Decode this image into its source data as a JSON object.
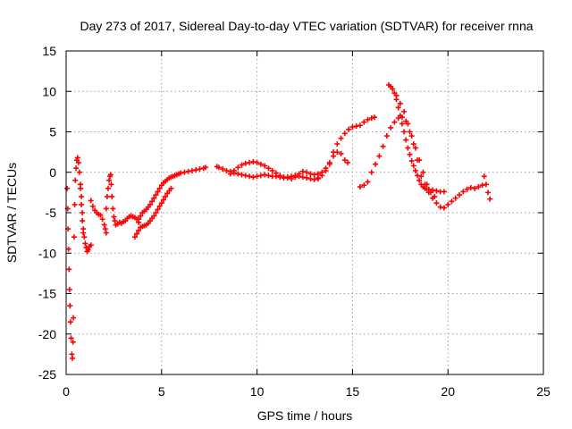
{
  "chart_data": {
    "type": "scatter",
    "title": "Day 273 of 2017, Sidereal Day-to-day VTEC variation (SDTVAR) for receiver rnna",
    "xlabel": "GPS time / hours",
    "ylabel": "SDTVAR / TECUs",
    "xlim": [
      0,
      25
    ],
    "ylim": [
      -25,
      15
    ],
    "x_ticks": [
      0,
      5,
      10,
      15,
      20,
      25
    ],
    "y_ticks": [
      -25,
      -20,
      -15,
      -10,
      -5,
      0,
      5,
      10,
      15
    ],
    "grid": true,
    "marker": "+",
    "series": [
      {
        "color": "#ff0000",
        "points": [
          [
            0.05,
            -2.0
          ],
          [
            0.08,
            -4.5
          ],
          [
            0.1,
            -7.0
          ],
          [
            0.12,
            -9.5
          ],
          [
            0.15,
            -12.0
          ],
          [
            0.18,
            -14.5
          ],
          [
            0.2,
            -16.5
          ],
          [
            0.23,
            -18.5
          ],
          [
            0.26,
            -20.5
          ],
          [
            0.3,
            -22.5
          ],
          [
            0.33,
            -23.0
          ],
          [
            0.36,
            -21.0
          ],
          [
            0.38,
            -18.0
          ],
          [
            0.42,
            -8.0
          ],
          [
            0.45,
            -4.0
          ],
          [
            0.48,
            -1.0
          ],
          [
            0.52,
            0.5
          ],
          [
            0.56,
            1.5
          ],
          [
            0.6,
            1.8
          ],
          [
            0.65,
            1.2
          ],
          [
            0.7,
            0.0
          ],
          [
            0.75,
            -1.5
          ],
          [
            0.8,
            -3.0
          ],
          [
            0.85,
            -5.0
          ],
          [
            0.9,
            -7.0
          ],
          [
            0.95,
            -8.0
          ],
          [
            1.0,
            -8.8
          ],
          [
            1.05,
            -9.3
          ],
          [
            1.1,
            -9.8
          ],
          [
            1.15,
            -9.6
          ],
          [
            1.22,
            -9.2
          ],
          [
            1.3,
            -9.0
          ],
          [
            0.75,
            -2.0
          ],
          [
            0.8,
            -4.0
          ],
          [
            0.85,
            -6.0
          ],
          [
            0.9,
            -7.5
          ],
          [
            1.3,
            -3.5
          ],
          [
            1.4,
            -4.2
          ],
          [
            1.5,
            -4.7
          ],
          [
            1.6,
            -5.0
          ],
          [
            1.7,
            -5.2
          ],
          [
            1.8,
            -5.3
          ],
          [
            1.9,
            -5.8
          ],
          [
            2.0,
            -6.5
          ],
          [
            2.05,
            -7.0
          ],
          [
            2.1,
            -7.5
          ],
          [
            2.1,
            -4.5
          ],
          [
            2.15,
            -3.0
          ],
          [
            2.2,
            -2.0
          ],
          [
            2.25,
            -1.0
          ],
          [
            2.3,
            -0.5
          ],
          [
            2.33,
            -0.3
          ],
          [
            2.36,
            -1.5
          ],
          [
            2.4,
            -3.0
          ],
          [
            2.45,
            -4.5
          ],
          [
            2.5,
            -5.5
          ],
          [
            2.55,
            -6.0
          ],
          [
            2.6,
            -6.5
          ],
          [
            2.7,
            -6.4
          ],
          [
            2.8,
            -6.2
          ],
          [
            2.9,
            -6.3
          ],
          [
            3.0,
            -6.1
          ],
          [
            3.1,
            -6.0
          ],
          [
            3.2,
            -5.7
          ],
          [
            3.3,
            -5.5
          ],
          [
            3.4,
            -5.4
          ],
          [
            3.5,
            -5.5
          ],
          [
            3.6,
            -5.6
          ],
          [
            3.7,
            -5.8
          ],
          [
            3.8,
            -6.2
          ],
          [
            3.6,
            -8.0
          ],
          [
            3.7,
            -7.6
          ],
          [
            3.8,
            -7.2
          ],
          [
            3.9,
            -6.8
          ],
          [
            4.0,
            -6.7
          ],
          [
            4.1,
            -6.6
          ],
          [
            4.2,
            -6.5
          ],
          [
            4.3,
            -6.3
          ],
          [
            4.4,
            -6.0
          ],
          [
            4.5,
            -5.7
          ],
          [
            4.6,
            -5.4
          ],
          [
            4.7,
            -5.0
          ],
          [
            4.8,
            -4.6
          ],
          [
            4.9,
            -4.2
          ],
          [
            5.0,
            -3.8
          ],
          [
            5.1,
            -3.4
          ],
          [
            5.2,
            -3.0
          ],
          [
            5.3,
            -2.6
          ],
          [
            5.4,
            -2.3
          ],
          [
            5.5,
            -2.0
          ],
          [
            3.8,
            -5.8
          ],
          [
            3.9,
            -5.4
          ],
          [
            4.0,
            -5.0
          ],
          [
            4.1,
            -4.8
          ],
          [
            4.2,
            -4.6
          ],
          [
            4.3,
            -4.3
          ],
          [
            4.4,
            -4.0
          ],
          [
            4.5,
            -3.6
          ],
          [
            4.6,
            -3.2
          ],
          [
            4.7,
            -2.8
          ],
          [
            4.8,
            -2.4
          ],
          [
            4.9,
            -2.0
          ],
          [
            5.0,
            -1.6
          ],
          [
            5.1,
            -1.3
          ],
          [
            5.2,
            -1.1
          ],
          [
            5.3,
            -0.9
          ],
          [
            5.4,
            -0.7
          ],
          [
            5.5,
            -0.6
          ],
          [
            5.6,
            -0.5
          ],
          [
            5.7,
            -0.4
          ],
          [
            5.8,
            -0.3
          ],
          [
            5.9,
            -0.2
          ],
          [
            6.0,
            -0.1
          ],
          [
            6.2,
            0.0
          ],
          [
            6.4,
            0.1
          ],
          [
            6.6,
            0.2
          ],
          [
            6.8,
            0.3
          ],
          [
            7.0,
            0.4
          ],
          [
            7.2,
            0.5
          ],
          [
            7.3,
            0.6
          ],
          [
            7.9,
            0.7
          ],
          [
            8.0,
            0.6
          ],
          [
            8.2,
            0.4
          ],
          [
            8.4,
            0.2
          ],
          [
            8.6,
            0.1
          ],
          [
            8.8,
            -0.1
          ],
          [
            9.0,
            -0.2
          ],
          [
            9.2,
            -0.3
          ],
          [
            9.4,
            -0.4
          ],
          [
            9.6,
            -0.5
          ],
          [
            9.8,
            -0.6
          ],
          [
            10.0,
            -0.5
          ],
          [
            10.2,
            -0.4
          ],
          [
            10.4,
            -0.3
          ],
          [
            10.6,
            -0.4
          ],
          [
            10.8,
            -0.5
          ],
          [
            11.0,
            -0.5
          ],
          [
            11.2,
            -0.6
          ],
          [
            11.4,
            -0.7
          ],
          [
            11.6,
            -0.6
          ],
          [
            11.8,
            -0.5
          ],
          [
            12.0,
            -0.4
          ],
          [
            8.6,
            -0.2
          ],
          [
            8.8,
            0.2
          ],
          [
            9.0,
            0.6
          ],
          [
            9.2,
            0.9
          ],
          [
            9.4,
            1.1
          ],
          [
            9.6,
            1.2
          ],
          [
            9.8,
            1.3
          ],
          [
            10.0,
            1.2
          ],
          [
            10.2,
            1.0
          ],
          [
            10.4,
            0.8
          ],
          [
            10.6,
            0.5
          ],
          [
            10.8,
            0.2
          ],
          [
            11.0,
            -0.1
          ],
          [
            11.2,
            -0.4
          ],
          [
            11.4,
            -0.6
          ],
          [
            11.6,
            -0.7
          ],
          [
            11.8,
            -0.8
          ],
          [
            12.0,
            -0.6
          ],
          [
            12.2,
            -0.5
          ],
          [
            12.4,
            -0.6
          ],
          [
            12.6,
            -0.7
          ],
          [
            12.8,
            -0.8
          ],
          [
            13.0,
            -0.9
          ],
          [
            13.2,
            -0.7
          ],
          [
            12.2,
            -0.2
          ],
          [
            12.4,
            0.1
          ],
          [
            12.6,
            0.0
          ],
          [
            12.8,
            -0.2
          ],
          [
            13.0,
            -0.3
          ],
          [
            13.2,
            -0.2
          ],
          [
            13.4,
            0.0
          ],
          [
            13.6,
            0.5
          ],
          [
            13.8,
            1.2
          ],
          [
            14.0,
            2.0
          ],
          [
            14.2,
            2.5
          ],
          [
            14.4,
            2.3
          ],
          [
            14.6,
            1.5
          ],
          [
            14.75,
            1.2
          ],
          [
            13.2,
            -0.8
          ],
          [
            13.4,
            -0.4
          ],
          [
            13.6,
            0.2
          ],
          [
            13.8,
            1.0
          ],
          [
            14.0,
            2.5
          ],
          [
            14.2,
            3.5
          ],
          [
            14.4,
            4.2
          ],
          [
            14.6,
            4.8
          ],
          [
            14.8,
            5.3
          ],
          [
            15.0,
            5.6
          ],
          [
            15.2,
            5.7
          ],
          [
            15.4,
            5.8
          ],
          [
            15.6,
            6.2
          ],
          [
            15.8,
            6.5
          ],
          [
            16.0,
            6.7
          ],
          [
            16.15,
            6.8
          ],
          [
            15.4,
            -1.8
          ],
          [
            15.6,
            -1.6
          ],
          [
            15.8,
            -1.2
          ],
          [
            16.0,
            0.0
          ],
          [
            16.2,
            1.0
          ],
          [
            16.4,
            2.0
          ],
          [
            16.6,
            3.2
          ],
          [
            16.8,
            4.5
          ],
          [
            17.0,
            5.5
          ],
          [
            17.2,
            6.2
          ],
          [
            17.4,
            6.7
          ],
          [
            17.6,
            6.8
          ],
          [
            17.8,
            6.3
          ],
          [
            18.0,
            5.0
          ],
          [
            18.2,
            3.5
          ],
          [
            18.4,
            1.5
          ],
          [
            18.6,
            -0.5
          ],
          [
            18.8,
            -1.5
          ],
          [
            19.0,
            -2.5
          ],
          [
            19.2,
            -3.2
          ],
          [
            19.4,
            -3.8
          ],
          [
            19.6,
            -4.3
          ],
          [
            19.8,
            -4.4
          ],
          [
            20.0,
            -4.0
          ],
          [
            20.2,
            -3.6
          ],
          [
            20.4,
            -3.2
          ],
          [
            20.6,
            -2.8
          ],
          [
            20.8,
            -2.4
          ],
          [
            21.0,
            -2.1
          ],
          [
            21.2,
            -1.9
          ],
          [
            21.4,
            -2.0
          ],
          [
            21.6,
            -1.8
          ],
          [
            21.8,
            -1.6
          ],
          [
            21.9,
            -0.5
          ],
          [
            22.0,
            -1.5
          ],
          [
            22.1,
            -2.5
          ],
          [
            22.2,
            -3.3
          ],
          [
            16.9,
            10.8
          ],
          [
            17.0,
            10.6
          ],
          [
            17.1,
            10.3
          ],
          [
            17.2,
            9.8
          ],
          [
            17.3,
            9.0
          ],
          [
            17.4,
            8.0
          ],
          [
            17.5,
            7.0
          ],
          [
            17.6,
            6.0
          ],
          [
            17.7,
            5.0
          ],
          [
            17.8,
            4.0
          ],
          [
            17.9,
            3.0
          ],
          [
            18.0,
            2.2
          ],
          [
            18.1,
            1.4
          ],
          [
            18.2,
            0.8
          ],
          [
            18.3,
            0.2
          ],
          [
            18.4,
            -0.4
          ],
          [
            18.5,
            -1.0
          ],
          [
            18.6,
            -1.5
          ],
          [
            18.7,
            -1.8
          ],
          [
            18.8,
            -2.0
          ],
          [
            18.9,
            -2.1
          ],
          [
            19.0,
            -2.1
          ],
          [
            19.2,
            -2.2
          ],
          [
            19.4,
            -2.3
          ],
          [
            19.6,
            -2.4
          ],
          [
            19.8,
            -2.4
          ],
          [
            17.3,
            9.5
          ],
          [
            17.5,
            8.5
          ],
          [
            17.7,
            7.5
          ],
          [
            17.9,
            6.0
          ],
          [
            18.1,
            4.5
          ],
          [
            18.3,
            3.0
          ],
          [
            18.5,
            1.5
          ],
          [
            18.7,
            0.0
          ],
          [
            18.9,
            -1.5
          ],
          [
            19.1,
            -2.5
          ],
          [
            19.3,
            -3.0
          ]
        ]
      }
    ]
  }
}
